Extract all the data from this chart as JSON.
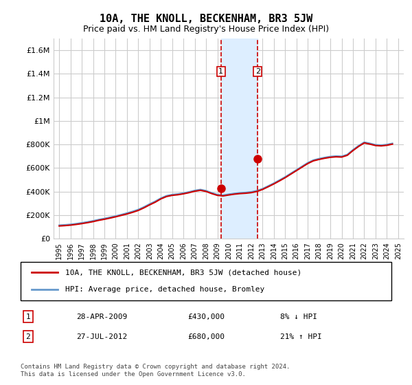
{
  "title": "10A, THE KNOLL, BECKENHAM, BR3 5JW",
  "subtitle": "Price paid vs. HM Land Registry's House Price Index (HPI)",
  "legend_line1": "10A, THE KNOLL, BECKENHAM, BR3 5JW (detached house)",
  "legend_line2": "HPI: Average price, detached house, Bromley",
  "footer": "Contains HM Land Registry data © Crown copyright and database right 2024.\nThis data is licensed under the Open Government Licence v3.0.",
  "transaction1_label": "1",
  "transaction1_date": "28-APR-2009",
  "transaction1_price": "£430,000",
  "transaction1_hpi": "8% ↓ HPI",
  "transaction2_label": "2",
  "transaction2_date": "27-JUL-2012",
  "transaction2_price": "£680,000",
  "transaction2_hpi": "21% ↑ HPI",
  "red_color": "#cc0000",
  "blue_color": "#6699cc",
  "shade_color": "#ddeeff",
  "grid_color": "#cccccc",
  "background_color": "#ffffff",
  "ylim": [
    0,
    1700000
  ],
  "yticks": [
    0,
    200000,
    400000,
    600000,
    800000,
    1000000,
    1200000,
    1400000,
    1600000
  ],
  "ytick_labels": [
    "£0",
    "£200K",
    "£400K",
    "£600K",
    "£800K",
    "£1M",
    "£1.2M",
    "£1.4M",
    "£1.6M"
  ],
  "vline1_year": 2009.32,
  "vline2_year": 2012.57,
  "marker1_year": 2009.32,
  "marker1_value": 430000,
  "marker2_year": 2012.57,
  "marker2_value": 680000,
  "hpi_years": [
    1995,
    1995.5,
    1996,
    1996.5,
    1997,
    1997.5,
    1998,
    1998.5,
    1999,
    1999.5,
    2000,
    2000.5,
    2001,
    2001.5,
    2002,
    2002.5,
    2003,
    2003.5,
    2004,
    2004.5,
    2005,
    2005.5,
    2006,
    2006.5,
    2007,
    2007.5,
    2008,
    2008.5,
    2009,
    2009.5,
    2010,
    2010.5,
    2011,
    2011.5,
    2012,
    2012.5,
    2013,
    2013.5,
    2014,
    2014.5,
    2015,
    2015.5,
    2016,
    2016.5,
    2017,
    2017.5,
    2018,
    2018.5,
    2019,
    2019.5,
    2020,
    2020.5,
    2021,
    2021.5,
    2022,
    2022.5,
    2023,
    2023.5,
    2024,
    2024.5
  ],
  "hpi_values": [
    115000,
    118000,
    122000,
    128000,
    135000,
    143000,
    152000,
    163000,
    172000,
    182000,
    193000,
    205000,
    218000,
    232000,
    248000,
    270000,
    295000,
    318000,
    345000,
    365000,
    375000,
    380000,
    388000,
    398000,
    410000,
    418000,
    408000,
    390000,
    375000,
    370000,
    378000,
    385000,
    390000,
    393000,
    398000,
    408000,
    425000,
    448000,
    472000,
    498000,
    525000,
    555000,
    585000,
    615000,
    645000,
    668000,
    680000,
    690000,
    698000,
    702000,
    700000,
    715000,
    755000,
    790000,
    820000,
    810000,
    798000,
    795000,
    800000,
    810000
  ],
  "red_years": [
    1995,
    1995.5,
    1996,
    1996.5,
    1997,
    1997.5,
    1998,
    1998.5,
    1999,
    1999.5,
    2000,
    2000.5,
    2001,
    2001.5,
    2002,
    2002.5,
    2003,
    2003.5,
    2004,
    2004.5,
    2005,
    2005.5,
    2006,
    2006.5,
    2007,
    2007.5,
    2008,
    2008.5,
    2009,
    2009.5,
    2010,
    2010.5,
    2011,
    2011.5,
    2012,
    2012.5,
    2013,
    2013.5,
    2014,
    2014.5,
    2015,
    2015.5,
    2016,
    2016.5,
    2017,
    2017.5,
    2018,
    2018.5,
    2019,
    2019.5,
    2020,
    2020.5,
    2021,
    2021.5,
    2022,
    2022.5,
    2023,
    2023.5,
    2024,
    2024.5
  ],
  "red_values": [
    108000,
    111000,
    115000,
    121000,
    128000,
    136000,
    145000,
    156000,
    165000,
    175000,
    186000,
    198000,
    210000,
    224000,
    240000,
    262000,
    287000,
    310000,
    338000,
    358000,
    368000,
    373000,
    381000,
    391000,
    403000,
    411000,
    401000,
    383000,
    368000,
    363000,
    371000,
    378000,
    383000,
    386000,
    391000,
    401000,
    418000,
    441000,
    465000,
    491000,
    518000,
    548000,
    578000,
    608000,
    638000,
    661000,
    673000,
    683000,
    691000,
    695000,
    693000,
    708000,
    748000,
    783000,
    813000,
    803000,
    791000,
    788000,
    793000,
    803000
  ],
  "xtick_years": [
    1995,
    1996,
    1997,
    1998,
    1999,
    2000,
    2001,
    2002,
    2003,
    2004,
    2005,
    2006,
    2007,
    2008,
    2009,
    2010,
    2011,
    2012,
    2013,
    2014,
    2015,
    2016,
    2017,
    2018,
    2019,
    2020,
    2021,
    2022,
    2023,
    2024,
    2025
  ],
  "xlim": [
    1994.5,
    2025.5
  ]
}
